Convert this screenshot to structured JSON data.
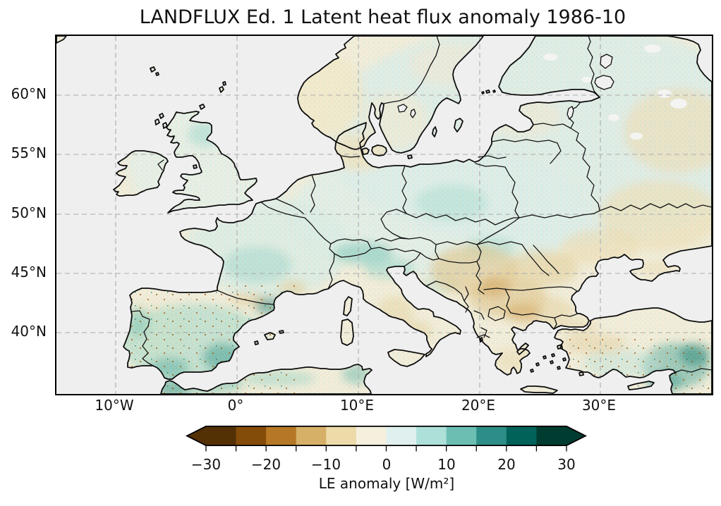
{
  "title": "LANDFLUX Ed. 1 Latent heat flux anomaly 1986-10",
  "axes": {
    "lat_ticks": [
      "60°N",
      "55°N",
      "50°N",
      "45°N",
      "40°N"
    ],
    "lon_ticks": [
      "10°W",
      "0°",
      "10°E",
      "20°E",
      "30°E"
    ]
  },
  "colorbar": {
    "label": "LE anomaly [W/m²]",
    "tick_labels": [
      "−30",
      "−20",
      "−10",
      "0",
      "10",
      "20",
      "30"
    ],
    "levels": [
      -30,
      -25,
      -20,
      -15,
      -10,
      -5,
      0,
      5,
      10,
      15,
      20,
      25,
      30
    ],
    "colors": [
      "#543005",
      "#844c09",
      "#b67826",
      "#d6b067",
      "#eddaa9",
      "#f5efde",
      "#e0f0ee",
      "#ade0d8",
      "#6cbeb3",
      "#2c8e86",
      "#01625a",
      "#003c30"
    ],
    "extend_colors": {
      "left": "#543005",
      "right": "#003c30"
    }
  },
  "map_colors": {
    "ocean": "#efefef",
    "land_base": "#f2edda",
    "coastline": "#0d0d0d",
    "gridline": "#ababab"
  },
  "chart_data": {
    "type": "heatmap",
    "title": "LANDFLUX Ed. 1 Latent heat flux anomaly 1986-10",
    "dataset": "LANDFLUX Ed. 1",
    "variable": "Latent heat flux (LE) anomaly",
    "time": "1986-10",
    "units": "W/m²",
    "projection": "equirectangular lon/lat over Europe",
    "extent": {
      "lon_min": -14.9,
      "lon_max": 39.3,
      "lat_min": 34.9,
      "lat_max": 65.0
    },
    "x_ticks_deg": [
      -10,
      0,
      10,
      20,
      30
    ],
    "y_ticks_deg": [
      60,
      55,
      50,
      45,
      40
    ],
    "grid": true,
    "gridline_style": "dashed gray",
    "colorbar": {
      "orientation": "horizontal",
      "levels": [
        -30,
        -25,
        -20,
        -15,
        -10,
        -5,
        0,
        5,
        10,
        15,
        20,
        25,
        30
      ],
      "labeled_ticks": [
        -30,
        -20,
        -10,
        0,
        10,
        20,
        30
      ],
      "extend": "both",
      "palette": "BrBG (brown = negative, teal = positive)",
      "label": "LE anomaly [W/m²]"
    },
    "ocean_masked": true,
    "regional_anomalies_wm2": [
      {
        "region": "Iberian Peninsula",
        "value": "+5 to +15"
      },
      {
        "region": "SE and NE Spain",
        "value": "+10 to +20"
      },
      {
        "region": "France",
        "value": "0 to +10"
      },
      {
        "region": "Alps / northern Italy",
        "value": "+5 to +15"
      },
      {
        "region": "Scotland",
        "value": "+5 to +10"
      },
      {
        "region": "Poland",
        "value": "+5 to +10"
      },
      {
        "region": "Scandinavia and NE Europe",
        "value": "0 to +5"
      },
      {
        "region": "Denmark / southern Norway coast",
        "value": "−5 to 0"
      },
      {
        "region": "Hungary / Serbia / Romania / Bulgaria",
        "value": "−5 to −15"
      },
      {
        "region": "Moldova / southern Ukraine / southern Russia",
        "value": "−5 to 0"
      },
      {
        "region": "central and southern Italy",
        "value": "−5 to −10"
      },
      {
        "region": "southern Greece",
        "value": "−5 to −10"
      },
      {
        "region": "NW Turkey",
        "value": "−5 to −10"
      },
      {
        "region": "eastern Turkey",
        "value": "+10 to +25"
      },
      {
        "region": "NW Africa (Maghreb coast)",
        "value": "+5 to +20"
      },
      {
        "region": "seas and large lakes",
        "value": "no data (gray)"
      }
    ]
  }
}
